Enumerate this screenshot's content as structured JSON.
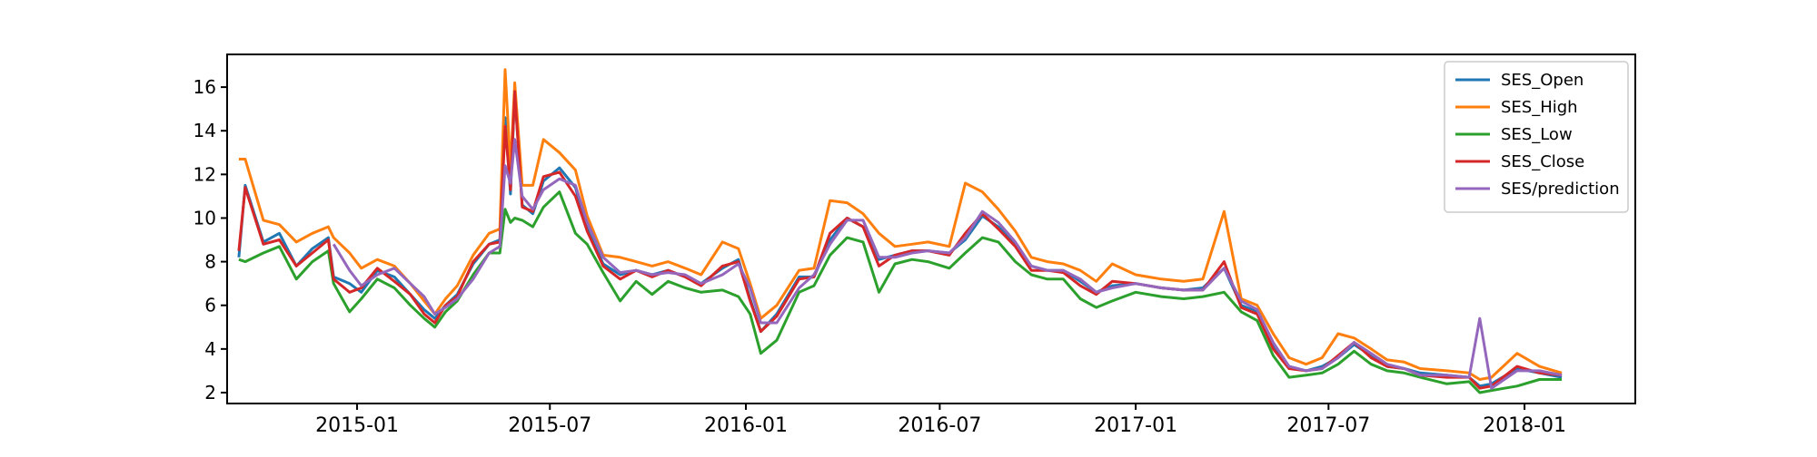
{
  "chart_data": {
    "type": "line",
    "title": "",
    "xlabel": "",
    "ylabel": "",
    "x_range": [
      "2014-09-01",
      "2018-04-15"
    ],
    "ylim": [
      1.5,
      17.5
    ],
    "x_ticks": [
      {
        "date": "2015-01-01",
        "label": "2015-01"
      },
      {
        "date": "2015-07-01",
        "label": "2015-07"
      },
      {
        "date": "2016-01-01",
        "label": "2016-01"
      },
      {
        "date": "2016-07-01",
        "label": "2016-07"
      },
      {
        "date": "2017-01-01",
        "label": "2017-01"
      },
      {
        "date": "2017-07-01",
        "label": "2017-07"
      },
      {
        "date": "2018-01-01",
        "label": "2018-01"
      }
    ],
    "y_ticks": [
      2,
      4,
      6,
      8,
      10,
      12,
      14,
      16
    ],
    "grid": false,
    "legend_position": "top-right",
    "series": [
      {
        "name": "SES_Open",
        "color": "#1f77b4",
        "y": [
          8.2,
          11.5,
          8.9,
          9.3,
          7.8,
          8.6,
          9.1,
          7.3,
          7.0,
          6.6,
          7.6,
          7.3,
          6.5,
          5.8,
          5.4,
          6.0,
          6.5,
          7.9,
          8.8,
          9.0,
          14.6,
          11.1,
          15.8,
          10.6,
          10.2,
          11.7,
          12.3,
          11.4,
          9.5,
          7.9,
          7.4,
          7.6,
          7.4,
          7.6,
          7.3,
          7.0,
          7.7,
          8.1,
          6.3,
          4.8,
          5.6,
          7.3,
          7.3,
          9.0,
          10.0,
          9.6,
          8.1,
          8.3,
          8.5,
          8.5,
          8.4,
          9.0,
          10.1,
          9.6,
          8.8,
          7.8,
          7.6,
          7.6,
          7.1,
          6.6,
          6.9,
          7.0,
          6.8,
          6.7,
          6.8,
          7.7,
          6.0,
          5.7,
          4.2,
          3.2,
          3.0,
          3.2,
          3.6,
          4.2,
          3.7,
          3.2,
          3.1,
          2.9,
          2.8,
          2.7,
          2.3,
          2.4,
          3.1,
          2.9,
          2.7
        ]
      },
      {
        "name": "SES_High",
        "color": "#ff7f0e",
        "y": [
          12.7,
          12.7,
          9.9,
          9.7,
          8.9,
          9.3,
          9.6,
          9.1,
          8.4,
          7.7,
          8.1,
          7.8,
          7.0,
          6.2,
          5.6,
          6.3,
          6.9,
          8.3,
          9.3,
          9.5,
          16.8,
          12.3,
          16.2,
          11.5,
          11.5,
          13.6,
          13.0,
          12.2,
          10.1,
          8.3,
          8.2,
          8.0,
          7.8,
          8.0,
          7.7,
          7.4,
          8.9,
          8.6,
          7.0,
          5.4,
          6.0,
          7.6,
          7.7,
          10.8,
          10.7,
          10.2,
          9.3,
          8.7,
          8.8,
          8.9,
          8.7,
          11.6,
          11.2,
          10.4,
          9.4,
          8.2,
          8.0,
          7.9,
          7.6,
          7.1,
          7.9,
          7.4,
          7.2,
          7.1,
          7.2,
          10.3,
          6.3,
          6.0,
          4.7,
          3.6,
          3.3,
          3.6,
          4.7,
          4.5,
          4.0,
          3.5,
          3.4,
          3.1,
          3.0,
          2.9,
          2.6,
          2.7,
          3.8,
          3.2,
          2.9
        ]
      },
      {
        "name": "SES_Low",
        "color": "#2ca02c",
        "y": [
          8.1,
          8.0,
          8.4,
          8.7,
          7.2,
          8.0,
          8.5,
          7.0,
          5.7,
          6.3,
          7.2,
          6.8,
          6.0,
          5.4,
          5.0,
          5.7,
          6.2,
          7.4,
          8.4,
          8.4,
          10.4,
          9.8,
          10.0,
          9.9,
          9.6,
          10.5,
          11.2,
          9.3,
          8.8,
          7.5,
          6.2,
          7.1,
          6.5,
          7.1,
          6.8,
          6.6,
          6.7,
          6.4,
          5.6,
          3.8,
          4.4,
          6.6,
          6.9,
          8.3,
          9.1,
          8.9,
          6.6,
          7.9,
          8.1,
          8.0,
          7.7,
          8.4,
          9.1,
          8.9,
          8.0,
          7.4,
          7.2,
          7.2,
          6.3,
          5.9,
          6.2,
          6.6,
          6.4,
          6.3,
          6.4,
          6.6,
          5.7,
          5.3,
          3.7,
          2.7,
          2.8,
          2.9,
          3.3,
          3.9,
          3.3,
          3.0,
          2.9,
          2.7,
          2.4,
          2.5,
          2.0,
          2.1,
          2.3,
          2.6,
          2.6
        ]
      },
      {
        "name": "SES_Close",
        "color": "#d62728",
        "y": [
          8.5,
          11.4,
          8.8,
          9.0,
          7.8,
          8.4,
          9.0,
          7.2,
          6.6,
          6.8,
          7.7,
          7.1,
          6.5,
          5.6,
          5.2,
          6.0,
          6.4,
          8.0,
          8.8,
          8.9,
          14.2,
          11.3,
          15.8,
          10.5,
          10.3,
          11.9,
          12.1,
          11.0,
          9.4,
          7.8,
          7.2,
          7.6,
          7.3,
          7.6,
          7.3,
          6.9,
          7.8,
          8.0,
          6.2,
          4.8,
          5.5,
          7.2,
          7.3,
          9.3,
          10.0,
          9.6,
          7.8,
          8.3,
          8.5,
          8.5,
          8.3,
          9.3,
          10.2,
          9.5,
          8.7,
          7.6,
          7.6,
          7.5,
          6.9,
          6.5,
          7.1,
          7.0,
          6.8,
          6.7,
          6.7,
          8.0,
          5.9,
          5.6,
          4.0,
          3.1,
          3.0,
          3.1,
          3.7,
          4.3,
          3.6,
          3.2,
          3.1,
          2.8,
          2.7,
          2.7,
          2.2,
          2.3,
          3.2,
          2.9,
          2.8
        ]
      },
      {
        "name": "SES/prediction",
        "color": "#9467bd",
        "y": [
          null,
          null,
          null,
          null,
          null,
          null,
          null,
          8.8,
          7.6,
          6.9,
          7.4,
          7.7,
          7.0,
          6.4,
          5.6,
          5.9,
          6.3,
          7.2,
          8.4,
          8.7,
          12.4,
          11.6,
          13.6,
          11.0,
          10.4,
          11.3,
          11.8,
          11.5,
          9.8,
          8.2,
          7.5,
          7.6,
          7.4,
          7.5,
          7.4,
          7.0,
          7.4,
          7.9,
          6.8,
          5.2,
          5.2,
          6.8,
          7.4,
          8.8,
          9.9,
          9.9,
          8.2,
          8.2,
          8.4,
          8.5,
          8.4,
          9.1,
          10.3,
          9.8,
          8.9,
          7.8,
          7.6,
          7.6,
          7.2,
          6.6,
          6.8,
          7.0,
          6.8,
          6.7,
          6.7,
          7.7,
          6.2,
          5.8,
          4.3,
          3.2,
          3.0,
          3.1,
          3.6,
          4.3,
          3.8,
          3.3,
          3.1,
          2.8,
          2.8,
          2.7,
          5.4,
          2.2,
          3.0,
          3.0,
          2.8
        ]
      }
    ],
    "x": [
      "2014-09-12",
      "2014-09-18",
      "2014-10-05",
      "2014-10-20",
      "2014-11-05",
      "2014-11-20",
      "2014-12-05",
      "2014-12-10",
      "2014-12-25",
      "2015-01-05",
      "2015-01-20",
      "2015-02-05",
      "2015-02-20",
      "2015-03-05",
      "2015-03-15",
      "2015-03-25",
      "2015-04-05",
      "2015-04-20",
      "2015-05-05",
      "2015-05-15",
      "2015-05-20",
      "2015-05-25",
      "2015-05-29",
      "2015-06-05",
      "2015-06-15",
      "2015-06-25",
      "2015-07-10",
      "2015-07-25",
      "2015-08-05",
      "2015-08-20",
      "2015-09-05",
      "2015-09-20",
      "2015-10-05",
      "2015-10-20",
      "2015-11-05",
      "2015-11-20",
      "2015-12-10",
      "2015-12-25",
      "2016-01-05",
      "2016-01-15",
      "2016-01-30",
      "2016-02-20",
      "2016-03-05",
      "2016-03-20",
      "2016-04-05",
      "2016-04-20",
      "2016-05-05",
      "2016-05-20",
      "2016-06-05",
      "2016-06-20",
      "2016-07-10",
      "2016-07-25",
      "2016-08-10",
      "2016-08-25",
      "2016-09-10",
      "2016-09-25",
      "2016-10-10",
      "2016-10-25",
      "2016-11-10",
      "2016-11-25",
      "2016-12-10",
      "2017-01-01",
      "2017-01-25",
      "2017-02-15",
      "2017-03-05",
      "2017-03-25",
      "2017-04-10",
      "2017-04-25",
      "2017-05-10",
      "2017-05-25",
      "2017-06-10",
      "2017-06-25",
      "2017-07-10",
      "2017-07-25",
      "2017-08-10",
      "2017-08-25",
      "2017-09-10",
      "2017-09-25",
      "2017-10-20",
      "2017-11-10",
      "2017-11-20",
      "2017-12-01",
      "2017-12-25",
      "2018-01-15",
      "2018-02-05"
    ]
  }
}
